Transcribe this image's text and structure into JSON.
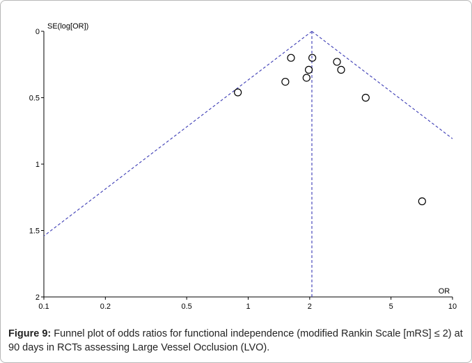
{
  "chart_data": {
    "type": "scatter",
    "subtype": "funnel-plot",
    "xlabel": "OR",
    "ylabel": "SE(log[OR])",
    "x_scale": "log",
    "xlim": [
      0.1,
      10
    ],
    "ylim": [
      0,
      2
    ],
    "y_inverted": true,
    "x_ticks": [
      0.1,
      0.2,
      0.5,
      1,
      2,
      5,
      10
    ],
    "x_tick_labels": [
      "0.1",
      "0.2",
      "0.5",
      "1",
      "2",
      "5",
      "10"
    ],
    "y_ticks": [
      0,
      0.5,
      1,
      1.5,
      2
    ],
    "y_tick_labels": [
      "0",
      "0.5",
      "1",
      "1.5",
      "2"
    ],
    "pooled_or": 2.05,
    "points": [
      {
        "x": 0.89,
        "y": 0.46
      },
      {
        "x": 1.52,
        "y": 0.38
      },
      {
        "x": 1.62,
        "y": 0.2
      },
      {
        "x": 1.93,
        "y": 0.35
      },
      {
        "x": 1.98,
        "y": 0.29
      },
      {
        "x": 2.06,
        "y": 0.2
      },
      {
        "x": 2.72,
        "y": 0.23
      },
      {
        "x": 2.85,
        "y": 0.29
      },
      {
        "x": 3.76,
        "y": 0.5
      },
      {
        "x": 7.1,
        "y": 1.28
      }
    ],
    "colors": {
      "points": "#000000",
      "guides": "#3a3ab4",
      "axis": "#000000"
    },
    "grid": false,
    "legend": "none"
  },
  "caption": {
    "label": "Figure 9:",
    "text": " Funnel plot of odds ratios for functional independence (modified Rankin Scale [mRS] ≤ 2) at 90 days in RCTs assessing Large Vessel Occlusion (LVO)."
  }
}
